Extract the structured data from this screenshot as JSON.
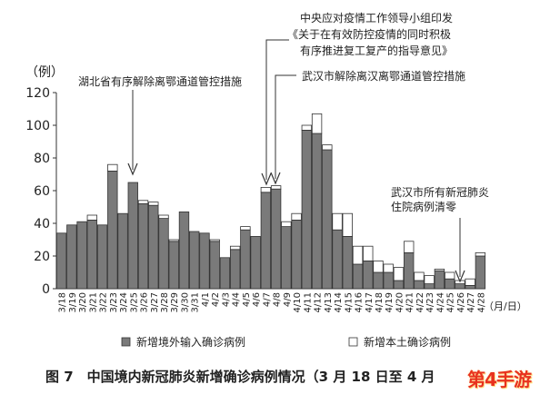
{
  "chart_data": {
    "type": "bar",
    "stacked": true,
    "unit_label": "（例）",
    "x_unit_label": "（月/日）",
    "ylim": [
      0,
      120
    ],
    "yticks": [
      0,
      20,
      40,
      60,
      80,
      100,
      120
    ],
    "grid": false,
    "categories": [
      "3/18",
      "3/19",
      "3/20",
      "3/21",
      "3/22",
      "3/23",
      "3/24",
      "3/25",
      "3/26",
      "3/27",
      "3/28",
      "3/29",
      "3/30",
      "3/31",
      "4/1",
      "4/2",
      "4/3",
      "4/4",
      "4/5",
      "4/6",
      "4/7",
      "4/8",
      "4/9",
      "4/10",
      "4/11",
      "4/12",
      "4/13",
      "4/14",
      "4/15",
      "4/16",
      "4/17",
      "4/18",
      "4/19",
      "4/20",
      "4/21",
      "4/22",
      "4/23",
      "4/24",
      "4/25",
      "4/26",
      "4/27",
      "4/28"
    ],
    "series": [
      {
        "name": "新增境外输入确诊病例",
        "color": "#7a7a7a",
        "values": [
          34,
          39,
          41,
          42,
          39,
          72,
          46,
          65,
          52,
          51,
          43,
          29,
          47,
          35,
          34,
          29,
          19,
          24,
          36,
          32,
          59,
          61,
          38,
          42,
          97,
          95,
          85,
          36,
          32,
          15,
          17,
          10,
          10,
          5,
          22,
          5,
          3,
          11,
          6,
          3,
          2,
          20
        ]
      },
      {
        "name": "新增本土确诊病例",
        "color": "#ffffff",
        "values": [
          0,
          0,
          0,
          3,
          0,
          4,
          0,
          0,
          2,
          2,
          2,
          1,
          0,
          0,
          0,
          1,
          0,
          2,
          2,
          0,
          3,
          2,
          3,
          4,
          3,
          12,
          3,
          10,
          14,
          11,
          9,
          7,
          5,
          8,
          7,
          5,
          5,
          1,
          4,
          2,
          4,
          2
        ]
      }
    ],
    "annotations": [
      {
        "text": "湖北省有序解除离鄂通道管控措施",
        "target": "3/25"
      },
      {
        "text": [
          "中央应对疫情工作领导小组印发",
          "《关于在有效防控疫情的同时积极",
          "有序推进复工复产的指导意见》"
        ],
        "target": "4/7"
      },
      {
        "text": "武汉市解除离汉离鄂通道管控措施",
        "target": "4/8"
      },
      {
        "text": [
          "武汉市所有新冠肺炎",
          "住院病例清零"
        ],
        "target": "4/26"
      }
    ],
    "title": "图 7　中国境内新冠肺炎新增确诊病例情况（3 月 18 日至 4 月"
  },
  "watermark": {
    "text": "第4手游",
    "color": "#e8321e"
  }
}
